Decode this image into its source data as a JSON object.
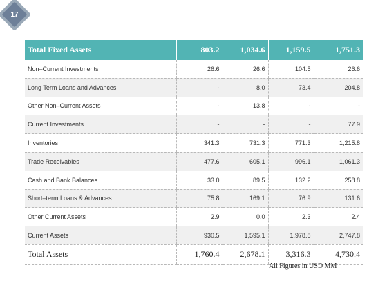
{
  "slide_number": "17",
  "header": {
    "label": "Total Fixed Assets",
    "values": [
      "803.2",
      "1,034.6",
      "1,159.5",
      "1,751.3"
    ]
  },
  "rows": [
    {
      "label": "Non–Current Investments",
      "values": [
        "26.6",
        "26.6",
        "104.5",
        "26.6"
      ]
    },
    {
      "label": "Long Term Loans and Advances",
      "values": [
        "-",
        "8.0",
        "73.4",
        "204.8"
      ]
    },
    {
      "label": "Other Non–Current Assets",
      "values": [
        "-",
        "13.8",
        "-",
        "-"
      ]
    },
    {
      "label": "Current Investments",
      "values": [
        "-",
        "-",
        "-",
        "77.9"
      ]
    },
    {
      "label": "Inventories",
      "values": [
        "341.3",
        "731.3",
        "771.3",
        "1,215.8"
      ]
    },
    {
      "label": "Trade Receivables",
      "values": [
        "477.6",
        "605.1",
        "996.1",
        "1,061.3"
      ]
    },
    {
      "label": "Cash and Bank Balances",
      "values": [
        "33.0",
        "89.5",
        "132.2",
        "258.8"
      ]
    },
    {
      "label": "Short–term Loans & Advances",
      "values": [
        "75.8",
        "169.1",
        "76.9",
        "131.6"
      ]
    },
    {
      "label": "Other Current Assets",
      "values": [
        "2.9",
        "0.0",
        "2.3",
        "2.4"
      ]
    },
    {
      "label": "Current Assets",
      "values": [
        "930.5",
        "1,595.1",
        "1,978.8",
        "2,747.8"
      ]
    }
  ],
  "total": {
    "label": "Total Assets",
    "values": [
      "1,760.4",
      "2,678.1",
      "3,316.3",
      "4,730.4"
    ]
  },
  "footnote": "All Figures in USD MM"
}
